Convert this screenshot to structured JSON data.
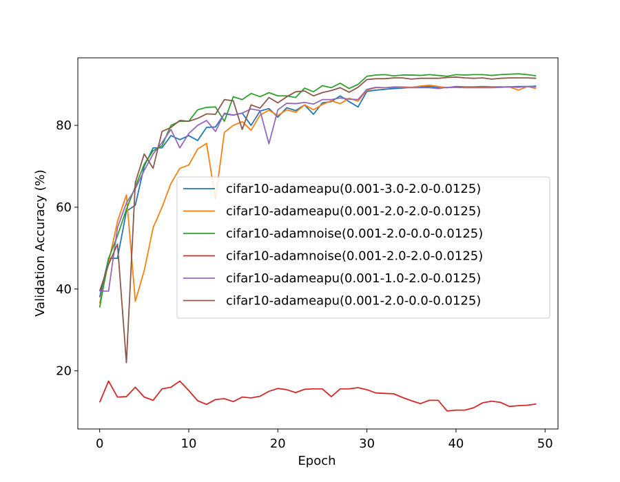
{
  "chart_data": {
    "type": "line",
    "title": "",
    "xlabel": "Epoch",
    "ylabel": "Validation Accuracy (%)",
    "xlim": [
      -2.45,
      51.45
    ],
    "ylim": [
      5.8,
      96.5
    ],
    "xticks": [
      0,
      10,
      20,
      30,
      40,
      50
    ],
    "yticks": [
      20,
      40,
      60,
      80
    ],
    "grid": false,
    "legend_position": "center-right",
    "x": [
      0,
      1,
      2,
      3,
      4,
      5,
      6,
      7,
      8,
      9,
      10,
      11,
      12,
      13,
      14,
      15,
      16,
      17,
      18,
      19,
      20,
      21,
      22,
      23,
      24,
      25,
      26,
      27,
      28,
      29,
      30,
      31,
      32,
      33,
      34,
      35,
      36,
      37,
      38,
      39,
      40,
      41,
      42,
      43,
      44,
      45,
      46,
      47,
      48,
      49
    ],
    "series": [
      {
        "name": "cifar10-adameapu(0.001-3.0-2.0-0.0125)",
        "color": "#1f77b4",
        "values": [
          38.0,
          47.5,
          47.5,
          59.0,
          60.5,
          70.0,
          74.5,
          74.5,
          77.5,
          76.5,
          77.5,
          76.3,
          79.5,
          79.6,
          82.8,
          82.5,
          83.0,
          80.0,
          83.5,
          84.1,
          82.0,
          84.3,
          83.6,
          85.0,
          82.7,
          85.5,
          85.8,
          87.2,
          85.8,
          84.5,
          88.3,
          88.6,
          88.8,
          89.0,
          89.1,
          89.3,
          89.4,
          89.5,
          89.3,
          89.2,
          89.5,
          89.4,
          89.4,
          89.5,
          89.4,
          89.4,
          89.4,
          89.5,
          89.5,
          89.6
        ]
      },
      {
        "name": "cifar10-adameapu(0.001-2.0-2.0-0.0125)",
        "color": "#ff7f0e",
        "values": [
          36.5,
          46.5,
          56.5,
          63.0,
          37.0,
          44.5,
          55.0,
          60.0,
          65.8,
          69.5,
          70.3,
          74.2,
          75.6,
          62.0,
          78.3,
          80.0,
          80.9,
          78.8,
          82.5,
          83.7,
          82.4,
          83.8,
          83.2,
          85.0,
          83.8,
          85.1,
          86.0,
          85.3,
          86.6,
          85.9,
          88.6,
          89.2,
          89.2,
          89.4,
          89.4,
          89.3,
          89.6,
          89.8,
          89.5,
          89.2,
          89.3,
          89.3,
          89.3,
          89.3,
          89.3,
          89.3,
          89.4,
          88.6,
          89.5,
          89.0
        ]
      },
      {
        "name": "cifar10-adamnoise(0.001-2.0-0.0-0.0125)",
        "color": "#2ca02c",
        "values": [
          35.5,
          47.5,
          53.0,
          59.5,
          65.0,
          70.5,
          73.8,
          75.0,
          80.0,
          81.0,
          81.0,
          83.8,
          84.4,
          84.5,
          81.0,
          87.0,
          86.3,
          87.8,
          87.0,
          88.0,
          87.2,
          87.2,
          86.8,
          89.1,
          88.2,
          89.7,
          89.2,
          90.3,
          89.0,
          90.0,
          92.0,
          92.3,
          92.4,
          92.1,
          92.3,
          92.3,
          92.2,
          92.4,
          92.2,
          92.0,
          92.4,
          92.3,
          92.4,
          92.4,
          92.2,
          92.4,
          92.5,
          92.6,
          92.4,
          92.1
        ]
      },
      {
        "name": "cifar10-adamnoise(0.001-2.0-2.0-0.0125)",
        "color": "#d62728",
        "values": [
          12.3,
          17.5,
          13.6,
          13.7,
          16.0,
          13.6,
          12.8,
          15.6,
          16.0,
          17.5,
          15.2,
          12.7,
          11.8,
          13.0,
          13.2,
          12.5,
          13.6,
          13.4,
          13.8,
          15.0,
          15.7,
          15.4,
          14.7,
          15.5,
          15.6,
          15.6,
          13.7,
          15.6,
          15.6,
          15.9,
          15.4,
          14.6,
          14.5,
          14.4,
          13.5,
          12.7,
          12.0,
          12.8,
          12.8,
          10.2,
          10.4,
          10.4,
          11.0,
          12.2,
          12.6,
          12.3,
          11.3,
          11.5,
          11.6,
          11.9
        ]
      },
      {
        "name": "cifar10-adameapu(0.001-1.0-2.0-0.0125)",
        "color": "#9467bd",
        "values": [
          39.5,
          39.5,
          55.0,
          61.0,
          64.5,
          69.0,
          73.0,
          75.8,
          79.0,
          74.5,
          78.0,
          80.0,
          81.2,
          78.5,
          83.0,
          82.5,
          83.0,
          84.0,
          83.6,
          75.5,
          83.8,
          85.4,
          85.3,
          85.6,
          85.2,
          86.3,
          86.3,
          86.7,
          86.4,
          86.3,
          88.8,
          89.3,
          89.2,
          89.3,
          89.2,
          89.2,
          89.2,
          89.2,
          89.0,
          89.3,
          89.3,
          89.2,
          89.2,
          89.2,
          89.2,
          89.3,
          89.4,
          89.3,
          89.5,
          89.4
        ]
      },
      {
        "name": "cifar10-adameapu(0.001-2.0-0.0-0.0125)",
        "color": "#8c564b",
        "values": [
          39.5,
          46.0,
          51.0,
          22.0,
          66.0,
          73.0,
          69.5,
          78.5,
          79.5,
          81.2,
          81.0,
          81.7,
          82.8,
          82.7,
          86.3,
          86.0,
          79.0,
          85.0,
          84.2,
          86.8,
          85.5,
          87.0,
          88.2,
          88.4,
          87.2,
          88.0,
          88.5,
          89.2,
          88.1,
          89.3,
          91.2,
          91.4,
          91.4,
          91.6,
          91.6,
          91.3,
          91.5,
          91.5,
          91.5,
          91.7,
          91.8,
          91.6,
          91.5,
          91.6,
          91.3,
          91.5,
          91.6,
          91.6,
          91.6,
          91.5
        ]
      }
    ]
  }
}
